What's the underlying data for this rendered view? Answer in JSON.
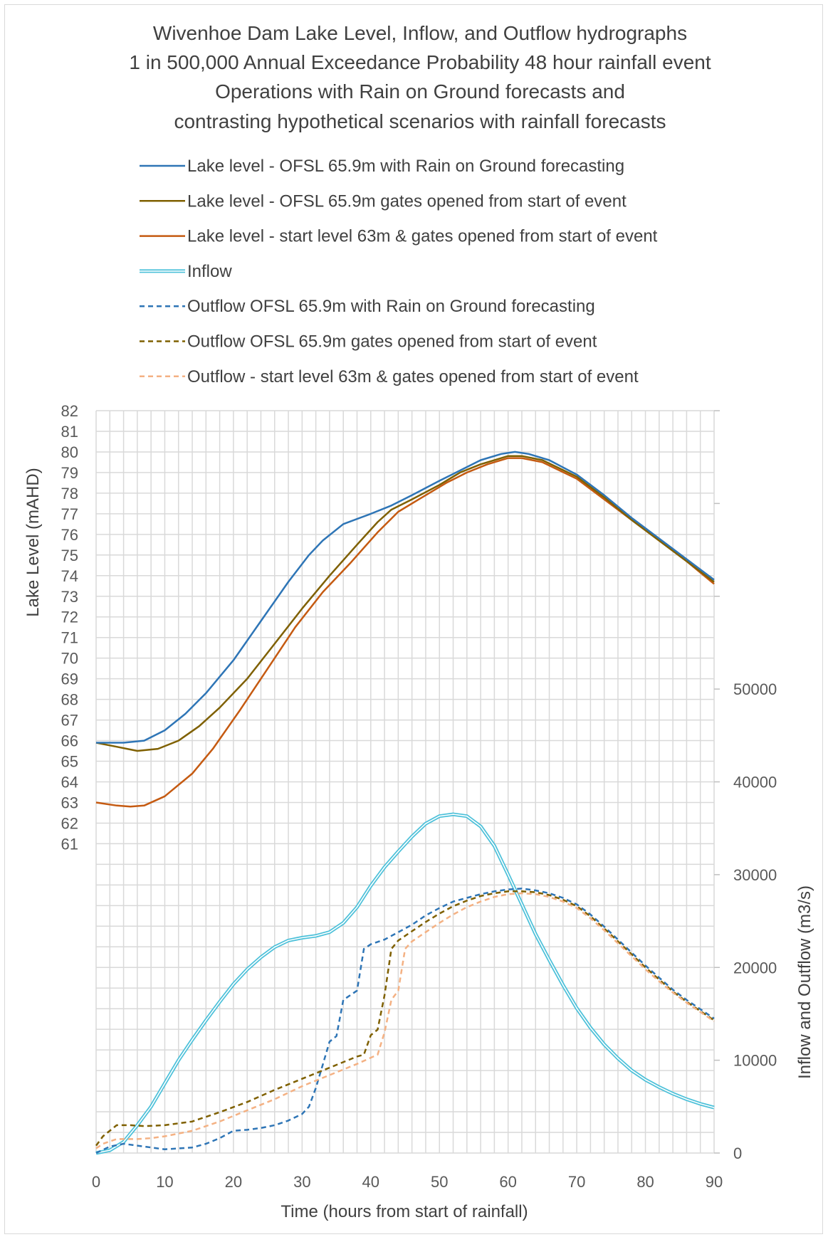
{
  "chart_data": {
    "type": "line",
    "title_lines": [
      "Wivenhoe Dam Lake Level, Inflow, and Outflow hydrographs",
      "1 in 500,000 Annual Exceedance Probability 48 hour rainfall event",
      "Operations with Rain on Ground forecasts and",
      "contrasting hypothetical scenarios with rainfall forecasts"
    ],
    "xlabel": "Time (hours from start of rainfall)",
    "ylabel_left": "Lake Level (mAHD)",
    "ylabel_right": "Inflow and Outflow (m3/s)",
    "xlim": [
      0,
      90
    ],
    "x_ticks": [
      "0",
      "10",
      "20",
      "30",
      "40",
      "50",
      "60",
      "70",
      "80",
      "90"
    ],
    "ylim_left": [
      46,
      82
    ],
    "y_left_ticks": [
      "61",
      "62",
      "63",
      "64",
      "65",
      "66",
      "67",
      "68",
      "69",
      "70",
      "71",
      "72",
      "73",
      "74",
      "75",
      "76",
      "77",
      "78",
      "79",
      "80",
      "81",
      "82"
    ],
    "ylim_right": [
      0,
      80000
    ],
    "y_right_ticks": [
      "0",
      "10000",
      "20000",
      "30000",
      "40000",
      "50000"
    ],
    "legend_position": "top",
    "grid": true,
    "series": [
      {
        "name": "Lake level - OFSL 65.9m with Rain on Ground forecasting",
        "axis": "left",
        "style": "solid",
        "color": "#2e75b6",
        "points": [
          [
            0,
            65.9
          ],
          [
            2,
            65.9
          ],
          [
            4,
            65.9
          ],
          [
            7,
            66.0
          ],
          [
            10,
            66.5
          ],
          [
            13,
            67.3
          ],
          [
            16,
            68.3
          ],
          [
            20,
            69.9
          ],
          [
            24,
            71.8
          ],
          [
            28,
            73.7
          ],
          [
            31,
            75.0
          ],
          [
            33,
            75.7
          ],
          [
            36,
            76.5
          ],
          [
            40,
            77.0
          ],
          [
            43,
            77.4
          ],
          [
            46,
            77.9
          ],
          [
            50,
            78.6
          ],
          [
            53,
            79.1
          ],
          [
            56,
            79.6
          ],
          [
            59,
            79.9
          ],
          [
            61,
            80.0
          ],
          [
            63,
            79.9
          ],
          [
            66,
            79.6
          ],
          [
            70,
            78.9
          ],
          [
            74,
            77.9
          ],
          [
            78,
            76.8
          ],
          [
            82,
            75.8
          ],
          [
            86,
            74.8
          ],
          [
            90,
            73.8
          ]
        ]
      },
      {
        "name": "Lake level - OFSL 65.9m gates opened from start of event",
        "axis": "left",
        "style": "solid",
        "color": "#7f6000",
        "points": [
          [
            0,
            65.9
          ],
          [
            3,
            65.7
          ],
          [
            6,
            65.5
          ],
          [
            9,
            65.6
          ],
          [
            12,
            66.0
          ],
          [
            15,
            66.7
          ],
          [
            18,
            67.6
          ],
          [
            22,
            69.0
          ],
          [
            26,
            70.7
          ],
          [
            30,
            72.4
          ],
          [
            34,
            74.0
          ],
          [
            38,
            75.5
          ],
          [
            41,
            76.6
          ],
          [
            43,
            77.2
          ],
          [
            46,
            77.7
          ],
          [
            50,
            78.4
          ],
          [
            53,
            79.0
          ],
          [
            56,
            79.4
          ],
          [
            60,
            79.8
          ],
          [
            62,
            79.8
          ],
          [
            65,
            79.6
          ],
          [
            70,
            78.8
          ],
          [
            74,
            77.8
          ],
          [
            78,
            76.7
          ],
          [
            82,
            75.7
          ],
          [
            86,
            74.7
          ],
          [
            90,
            73.7
          ]
        ]
      },
      {
        "name": "Lake level - start level 63m & gates opened from start of event",
        "axis": "left",
        "style": "solid",
        "color": "#c55a11",
        "points": [
          [
            0,
            63.0
          ],
          [
            3,
            62.85
          ],
          [
            5,
            62.8
          ],
          [
            7,
            62.85
          ],
          [
            10,
            63.3
          ],
          [
            14,
            64.4
          ],
          [
            17,
            65.6
          ],
          [
            21,
            67.5
          ],
          [
            25,
            69.5
          ],
          [
            29,
            71.5
          ],
          [
            33,
            73.2
          ],
          [
            37,
            74.6
          ],
          [
            41,
            76.1
          ],
          [
            44,
            77.1
          ],
          [
            47,
            77.7
          ],
          [
            51,
            78.5
          ],
          [
            54,
            79.0
          ],
          [
            57,
            79.4
          ],
          [
            60,
            79.7
          ],
          [
            62,
            79.7
          ],
          [
            65,
            79.5
          ],
          [
            70,
            78.7
          ],
          [
            74,
            77.7
          ],
          [
            78,
            76.7
          ],
          [
            82,
            75.7
          ],
          [
            86,
            74.7
          ],
          [
            90,
            73.6
          ]
        ]
      },
      {
        "name": "Inflow",
        "axis": "right",
        "style": "double",
        "color": "#4bc0d9",
        "points": [
          [
            0,
            0
          ],
          [
            2,
            300
          ],
          [
            4,
            1200
          ],
          [
            6,
            3000
          ],
          [
            8,
            5000
          ],
          [
            10,
            7500
          ],
          [
            12,
            10000
          ],
          [
            14,
            12200
          ],
          [
            16,
            14300
          ],
          [
            18,
            16300
          ],
          [
            20,
            18200
          ],
          [
            22,
            19800
          ],
          [
            24,
            21100
          ],
          [
            26,
            22200
          ],
          [
            28,
            22900
          ],
          [
            30,
            23200
          ],
          [
            32,
            23400
          ],
          [
            34,
            23800
          ],
          [
            36,
            24800
          ],
          [
            38,
            26500
          ],
          [
            40,
            28800
          ],
          [
            42,
            30800
          ],
          [
            44,
            32500
          ],
          [
            46,
            34100
          ],
          [
            48,
            35500
          ],
          [
            50,
            36300
          ],
          [
            52,
            36500
          ],
          [
            54,
            36300
          ],
          [
            56,
            35200
          ],
          [
            58,
            33100
          ],
          [
            60,
            30000
          ],
          [
            62,
            26800
          ],
          [
            64,
            23600
          ],
          [
            66,
            20800
          ],
          [
            68,
            18100
          ],
          [
            70,
            15600
          ],
          [
            72,
            13500
          ],
          [
            74,
            11700
          ],
          [
            76,
            10200
          ],
          [
            78,
            8900
          ],
          [
            80,
            7900
          ],
          [
            82,
            7100
          ],
          [
            84,
            6400
          ],
          [
            86,
            5800
          ],
          [
            88,
            5300
          ],
          [
            90,
            4900
          ]
        ]
      },
      {
        "name": "Outflow OFSL 65.9m with Rain on Ground forecasting",
        "axis": "right",
        "style": "dashed",
        "color": "#2e75b6",
        "points": [
          [
            0,
            0
          ],
          [
            2,
            700
          ],
          [
            4,
            1000
          ],
          [
            6,
            800
          ],
          [
            8,
            600
          ],
          [
            10,
            400
          ],
          [
            12,
            500
          ],
          [
            14,
            600
          ],
          [
            16,
            1000
          ],
          [
            18,
            1600
          ],
          [
            20,
            2400
          ],
          [
            22,
            2500
          ],
          [
            24,
            2700
          ],
          [
            26,
            3000
          ],
          [
            28,
            3500
          ],
          [
            30,
            4200
          ],
          [
            31,
            5000
          ],
          [
            32,
            7000
          ],
          [
            33,
            9500
          ],
          [
            34,
            12000
          ],
          [
            35,
            12600
          ],
          [
            36,
            16500
          ],
          [
            37,
            17000
          ],
          [
            38,
            17500
          ],
          [
            39,
            22000
          ],
          [
            40,
            22500
          ],
          [
            42,
            23000
          ],
          [
            44,
            23800
          ],
          [
            46,
            24600
          ],
          [
            48,
            25600
          ],
          [
            50,
            26400
          ],
          [
            52,
            27100
          ],
          [
            54,
            27500
          ],
          [
            56,
            27900
          ],
          [
            58,
            28200
          ],
          [
            60,
            28400
          ],
          [
            62,
            28500
          ],
          [
            64,
            28300
          ],
          [
            66,
            28000
          ],
          [
            68,
            27500
          ],
          [
            70,
            26800
          ],
          [
            72,
            25700
          ],
          [
            74,
            24400
          ],
          [
            76,
            23000
          ],
          [
            78,
            21600
          ],
          [
            80,
            20200
          ],
          [
            82,
            18900
          ],
          [
            84,
            17600
          ],
          [
            86,
            16500
          ],
          [
            88,
            15500
          ],
          [
            90,
            14500
          ]
        ]
      },
      {
        "name": "Outflow OFSL 65.9m gates opened from start of event",
        "axis": "right",
        "style": "dashed",
        "color": "#7f6000",
        "points": [
          [
            0,
            800
          ],
          [
            1,
            1800
          ],
          [
            3,
            3000
          ],
          [
            5,
            3000
          ],
          [
            7,
            2900
          ],
          [
            10,
            3000
          ],
          [
            14,
            3400
          ],
          [
            18,
            4400
          ],
          [
            22,
            5500
          ],
          [
            26,
            6800
          ],
          [
            30,
            8000
          ],
          [
            34,
            9200
          ],
          [
            38,
            10400
          ],
          [
            39,
            10600
          ],
          [
            40,
            12700
          ],
          [
            41,
            13300
          ],
          [
            42,
            17000
          ],
          [
            43,
            22000
          ],
          [
            44,
            22900
          ],
          [
            46,
            23900
          ],
          [
            48,
            24900
          ],
          [
            50,
            25800
          ],
          [
            52,
            26600
          ],
          [
            54,
            27200
          ],
          [
            56,
            27700
          ],
          [
            58,
            28000
          ],
          [
            60,
            28200
          ],
          [
            62,
            28200
          ],
          [
            64,
            28100
          ],
          [
            66,
            27800
          ],
          [
            68,
            27300
          ],
          [
            70,
            26600
          ],
          [
            72,
            25500
          ],
          [
            74,
            24200
          ],
          [
            76,
            22800
          ],
          [
            78,
            21400
          ],
          [
            80,
            20000
          ],
          [
            82,
            18700
          ],
          [
            84,
            17400
          ],
          [
            86,
            16300
          ],
          [
            88,
            15300
          ],
          [
            90,
            14300
          ]
        ]
      },
      {
        "name": "Outflow - start level 63m & gates opened from start of event",
        "axis": "right",
        "style": "dashed",
        "color": "#f4b183",
        "points": [
          [
            0,
            500
          ],
          [
            1,
            1000
          ],
          [
            3,
            1500
          ],
          [
            6,
            1500
          ],
          [
            8,
            1600
          ],
          [
            10,
            1800
          ],
          [
            14,
            2400
          ],
          [
            18,
            3400
          ],
          [
            22,
            4600
          ],
          [
            26,
            5800
          ],
          [
            30,
            7200
          ],
          [
            34,
            8400
          ],
          [
            38,
            9600
          ],
          [
            41,
            10600
          ],
          [
            42,
            13000
          ],
          [
            43,
            16500
          ],
          [
            44,
            17500
          ],
          [
            45,
            22000
          ],
          [
            46,
            22800
          ],
          [
            48,
            23800
          ],
          [
            50,
            24800
          ],
          [
            52,
            25700
          ],
          [
            54,
            26500
          ],
          [
            56,
            27100
          ],
          [
            58,
            27600
          ],
          [
            60,
            27900
          ],
          [
            62,
            28000
          ],
          [
            64,
            27900
          ],
          [
            66,
            27600
          ],
          [
            68,
            27100
          ],
          [
            70,
            26400
          ],
          [
            72,
            25300
          ],
          [
            74,
            24000
          ],
          [
            76,
            22600
          ],
          [
            78,
            21200
          ],
          [
            80,
            19800
          ],
          [
            82,
            18500
          ],
          [
            84,
            17300
          ],
          [
            86,
            16200
          ],
          [
            88,
            15200
          ],
          [
            90,
            14200
          ]
        ]
      }
    ]
  }
}
